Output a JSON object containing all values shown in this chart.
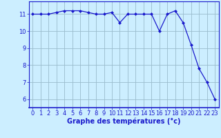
{
  "x": [
    0,
    1,
    2,
    3,
    4,
    5,
    6,
    7,
    8,
    9,
    10,
    11,
    12,
    13,
    14,
    15,
    16,
    17,
    18,
    19,
    20,
    21,
    22,
    23
  ],
  "y": [
    11.0,
    11.0,
    11.0,
    11.1,
    11.2,
    11.2,
    11.2,
    11.1,
    11.0,
    11.0,
    11.1,
    10.5,
    11.0,
    11.0,
    11.0,
    11.0,
    10.0,
    11.0,
    11.2,
    10.5,
    9.2,
    7.8,
    7.0,
    6.0
  ],
  "xlim": [
    -0.5,
    23.5
  ],
  "ylim": [
    5.5,
    11.75
  ],
  "yticks": [
    6,
    7,
    8,
    9,
    10,
    11
  ],
  "xticks": [
    0,
    1,
    2,
    3,
    4,
    5,
    6,
    7,
    8,
    9,
    10,
    11,
    12,
    13,
    14,
    15,
    16,
    17,
    18,
    19,
    20,
    21,
    22,
    23
  ],
  "xlabel": "Graphe des températures (°c)",
  "line_color": "#1a1acc",
  "marker": "D",
  "marker_size": 2.0,
  "bg_color": "#cceeff",
  "grid_color": "#99bbcc",
  "xlabel_fontsize": 7,
  "tick_fontsize": 6,
  "tick_color": "#1a1acc",
  "label_color": "#1a1acc"
}
